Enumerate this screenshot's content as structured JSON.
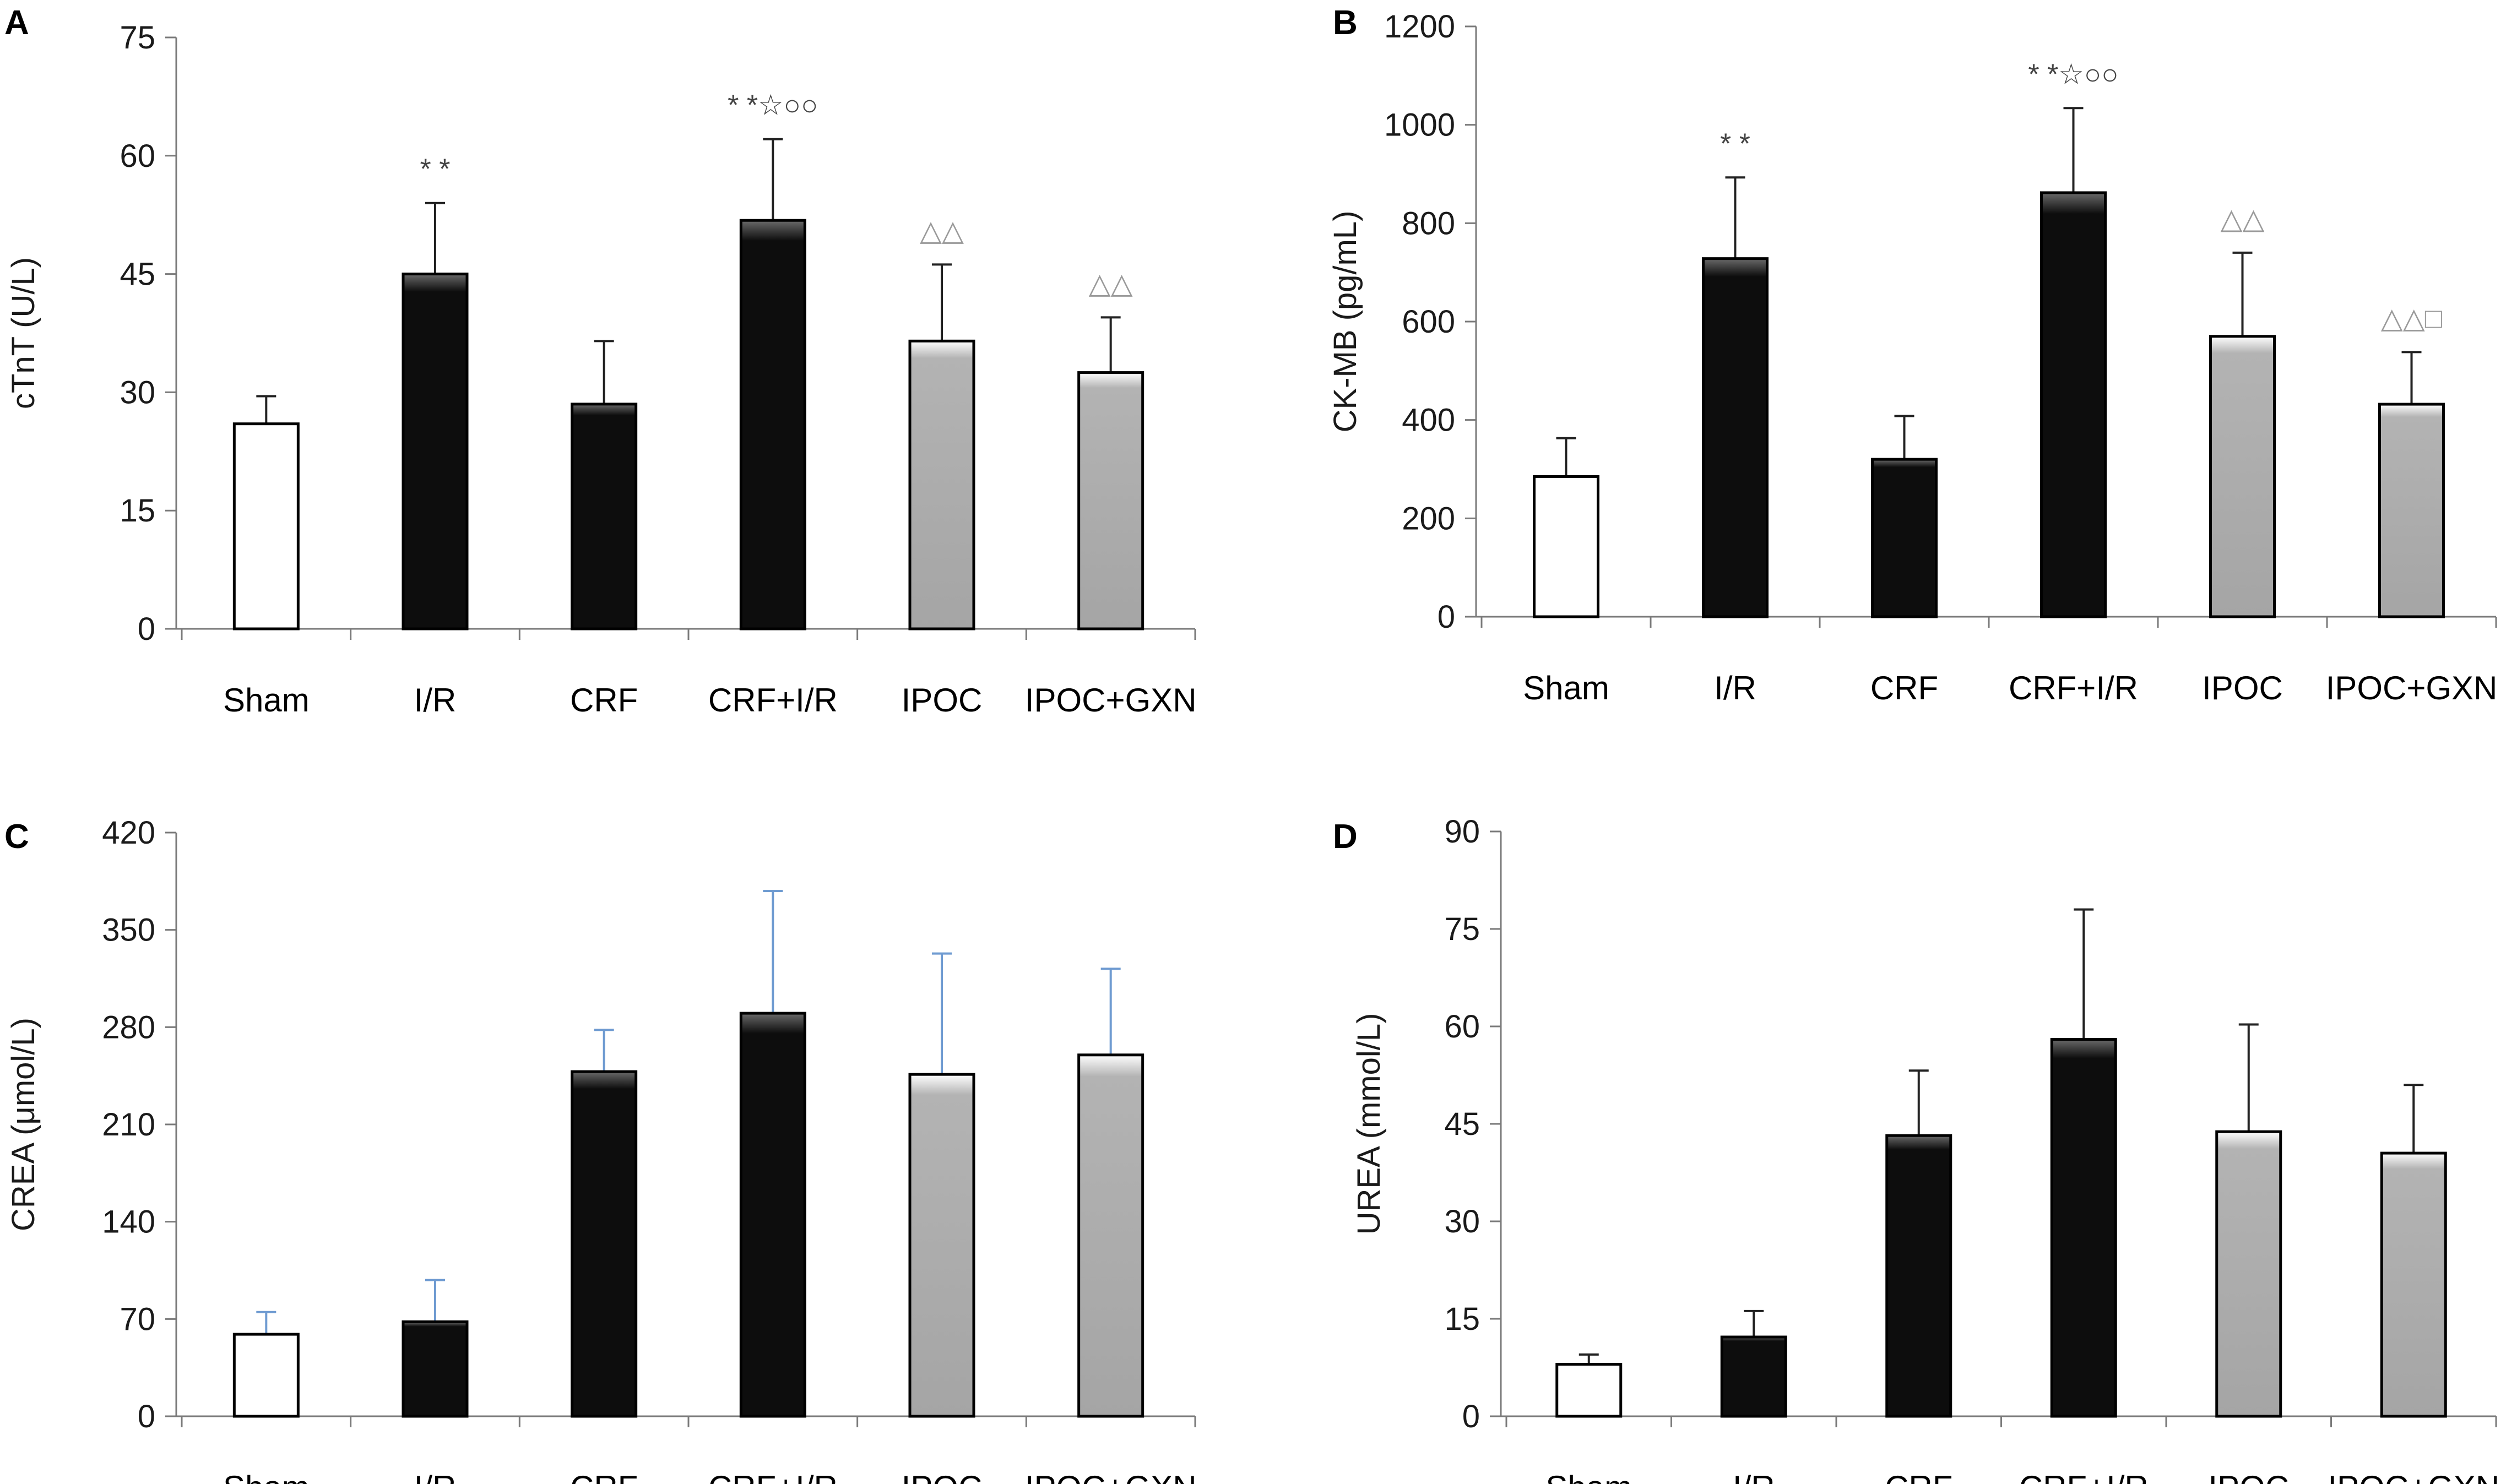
{
  "figure": {
    "panels": [
      "A",
      "B",
      "C",
      "D"
    ]
  },
  "colors": {
    "white_bar": "#ffffff",
    "black_bar": "#0d0d0d",
    "grey_bar": "#a8a8a8",
    "error_dark": "#222222",
    "error_blue": "#6f9bd1"
  },
  "chart_data": [
    {
      "panel": "A",
      "type": "bar",
      "ylabel": "cTnT (U/L)",
      "ylim": [
        0,
        75
      ],
      "yticks": [
        0,
        15,
        30,
        45,
        60,
        75
      ],
      "categories": [
        "Sham",
        "I/R",
        "CRF",
        "CRF+I/R",
        "IPOC",
        "IPOC+GXN"
      ],
      "fills": [
        "white",
        "black",
        "black",
        "black",
        "grey",
        "grey"
      ],
      "values": [
        26,
        45,
        28.5,
        51.8,
        36.5,
        32.5
      ],
      "errors": [
        3.5,
        9,
        8,
        10.3,
        9.7,
        7
      ],
      "error_color": "dark",
      "annotations": [
        "",
        "* *",
        "",
        "* *☆○○",
        "△△",
        "△△"
      ],
      "annotation_styles": [
        "",
        "dark",
        "",
        "dark",
        "light",
        "light"
      ]
    },
    {
      "panel": "B",
      "type": "bar",
      "ylabel": "CK-MB (pg/mL)",
      "ylim": [
        0,
        1200
      ],
      "yticks": [
        0,
        200,
        400,
        600,
        800,
        1000,
        1200
      ],
      "categories": [
        "Sham",
        "I/R",
        "CRF",
        "CRF+I/R",
        "IPOC",
        "IPOC+GXN"
      ],
      "fills": [
        "white",
        "black",
        "black",
        "black",
        "grey",
        "grey"
      ],
      "values": [
        285,
        728,
        320,
        862,
        570,
        432
      ],
      "errors": [
        78,
        165,
        88,
        172,
        170,
        106
      ],
      "error_color": "dark",
      "annotations": [
        "",
        "* *",
        "",
        "* *☆○○",
        "△△",
        "△△□"
      ],
      "annotation_styles": [
        "",
        "dark",
        "",
        "dark",
        "light",
        "light"
      ]
    },
    {
      "panel": "C",
      "type": "bar",
      "ylabel": "CREA (μmol/L)",
      "ylim": [
        0,
        420
      ],
      "yticks": [
        0,
        70,
        140,
        210,
        280,
        350,
        420
      ],
      "categories": [
        "Sham",
        "I/R",
        "CRF",
        "CRF+I/R",
        "IPOC",
        "IPOC+GXN"
      ],
      "fills": [
        "white",
        "black",
        "black",
        "black",
        "grey",
        "grey"
      ],
      "values": [
        59,
        68,
        248,
        290,
        246,
        260
      ],
      "errors": [
        16,
        30,
        30,
        88,
        87,
        62
      ],
      "error_color": "blue",
      "annotations": [
        "",
        "",
        "",
        "",
        "",
        ""
      ],
      "annotation_styles": [
        "",
        "",
        "",
        "",
        "",
        ""
      ]
    },
    {
      "panel": "D",
      "type": "bar",
      "ylabel": "UREA (mmol/L)",
      "ylim": [
        0,
        90
      ],
      "yticks": [
        0,
        15,
        30,
        45,
        60,
        75,
        90
      ],
      "categories": [
        "Sham",
        "I/R",
        "CRF",
        "CRF+I/R",
        "IPOC",
        "IPOC+GXN"
      ],
      "fills": [
        "white",
        "black",
        "black",
        "black",
        "grey",
        "grey"
      ],
      "values": [
        8,
        12.2,
        43.2,
        58,
        43.8,
        40.5
      ],
      "errors": [
        1.5,
        4,
        10,
        20,
        16.5,
        10.5
      ],
      "error_color": "dark",
      "annotations": [
        "",
        "",
        "",
        "",
        "",
        ""
      ],
      "annotation_styles": [
        "",
        "",
        "",
        "",
        "",
        ""
      ]
    }
  ]
}
